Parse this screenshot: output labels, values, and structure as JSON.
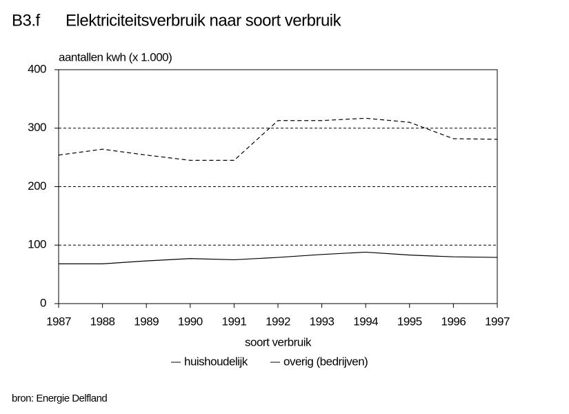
{
  "chart_data": {
    "type": "line",
    "code": "B3.f",
    "title": "Elektriciteitsverbruik naar soort verbruik",
    "y_label": "aantallen kwh (x 1.000)",
    "x_label": "soort verbruik",
    "source": "bron: Energie Delfland",
    "x": [
      1987,
      1988,
      1989,
      1990,
      1991,
      1992,
      1993,
      1994,
      1995,
      1996,
      1997
    ],
    "xlim": [
      1987,
      1997
    ],
    "xticks": [
      1987,
      1988,
      1989,
      1990,
      1991,
      1992,
      1993,
      1994,
      1995,
      1996,
      1997
    ],
    "ylim": [
      0,
      400
    ],
    "yticks": [
      0,
      100,
      200,
      300,
      400
    ],
    "grid": true,
    "grid_style": "dashed",
    "series": [
      {
        "name": "huishoudelijk",
        "color": "#000000",
        "line_style": "solid",
        "values": [
          68,
          68,
          73,
          77,
          75,
          79,
          84,
          88,
          83,
          80,
          79
        ]
      },
      {
        "name": "overig (bedrijven)",
        "color": "#000000",
        "line_style": "dashed",
        "values": [
          254,
          264,
          254,
          245,
          245,
          313,
          313,
          317,
          310,
          282,
          281
        ]
      }
    ]
  }
}
